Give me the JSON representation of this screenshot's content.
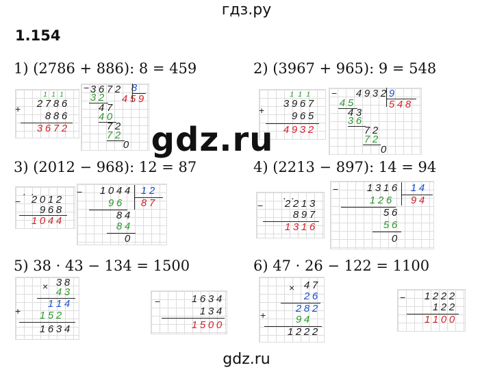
{
  "header": {
    "site": "гдз.ру"
  },
  "footer": {
    "site": "gdz.ru"
  },
  "watermark": "gdz.ru",
  "problem_number": "1.154",
  "equations": [
    "1) (2786 + 886): 8 = 459",
    "2) (3967 + 965): 9 = 548",
    "3) (2012 − 968): 12 = 87",
    "4) (2213 − 897): 14 = 94",
    "5) 38 · 43 − 134 = 1500",
    "6) 47 · 26 − 122 = 1100"
  ],
  "work": {
    "p1_add": {
      "carry": "1 1 1",
      "a": "2 7 8 6",
      "b": "8 8 6",
      "sum": "3 6 7 2"
    },
    "p1_div": {
      "dividend": "3 6 7 2",
      "divisor": "8",
      "quotient": "4 5 9",
      "steps": [
        "3 2",
        "4 7",
        "4 0",
        "7 2",
        "7 2",
        "0"
      ]
    },
    "p2_add": {
      "carry": "1 1 1",
      "a": "3 9 6 7",
      "b": "9 6 5",
      "sum": "4 9 3 2"
    },
    "p2_div": {
      "dividend": "4 9 3 2",
      "divisor": "9",
      "quotient": "5 4 8",
      "steps": [
        "4 5",
        "4 3",
        "3 6",
        "7 2",
        "7 2",
        "0"
      ]
    },
    "p3_sub": {
      "dots": ". .",
      "a": "2 0 1 2",
      "b": "9 6 8",
      "diff": "1 0 4 4"
    },
    "p3_div": {
      "dividend": "1 0 4 4",
      "divisor": "1 2",
      "quotient": "8 7",
      "steps": [
        "9 6",
        "8 4",
        "8 4",
        "0"
      ]
    },
    "p4_sub": {
      "dots": ". .",
      "a": "2 2 1 3",
      "b": "8 9 7",
      "diff": "1 3 1 6"
    },
    "p4_div": {
      "dividend": "1 3 1 6",
      "divisor": "1 4",
      "quotient": "9 4",
      "steps": [
        "1 2 6",
        "5 6",
        "5 6",
        "0"
      ]
    },
    "p5_mul": {
      "a": "3 8",
      "b": "4 3",
      "p1": "1 1 4",
      "p2": "1 5 2",
      "result": "1 6 3 4"
    },
    "p5_sub": {
      "a": "1 6 3 4",
      "b": "1 3 4",
      "diff": "1 5 0 0"
    },
    "p6_mul": {
      "a": "4 7",
      "b": "2 6",
      "p1": "2 8 2",
      "p2": "9 4",
      "result": "1 2 2 2"
    },
    "p6_sub": {
      "a": "1 2 2 2",
      "b": "1 2 2",
      "diff": "1 1 0 0"
    }
  }
}
